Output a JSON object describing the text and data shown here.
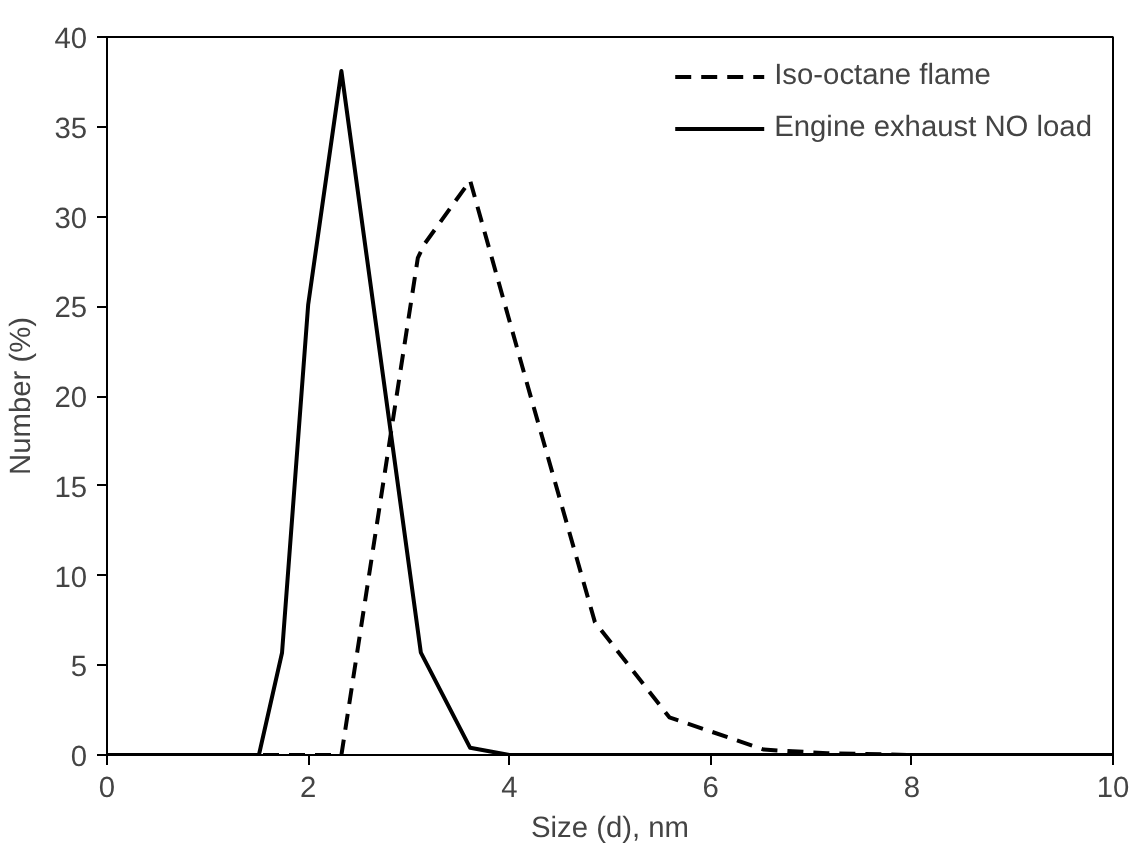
{
  "chart_data": {
    "type": "line",
    "xlabel": "Size (d), nm",
    "ylabel": "Number (%)",
    "xlim": [
      0,
      10
    ],
    "ylim": [
      0,
      40
    ],
    "xticks": [
      0,
      2,
      4,
      6,
      8,
      10
    ],
    "yticks": [
      0,
      5,
      10,
      15,
      20,
      25,
      30,
      35,
      40
    ],
    "grid": false,
    "legend": "top right",
    "marker": "none",
    "series": [
      {
        "name": "Iso-octane flame",
        "color": "#000000",
        "line_style": "dashed",
        "x": [
          0,
          1.5,
          2.33,
          3.09,
          3.16,
          3.61,
          4.2,
          4.85,
          5.59,
          6.53,
          7.16,
          8,
          10
        ],
        "values": [
          0,
          0,
          0,
          27.7,
          28.5,
          32.0,
          20.2,
          7.4,
          2.1,
          0.3,
          0.1,
          0,
          0
        ]
      },
      {
        "name": "Engine exhaust NO load",
        "color": "#000000",
        "line_style": "solid",
        "x": [
          0,
          1.51,
          1.74,
          2.0,
          2.33,
          3.12,
          3.61,
          4.0,
          6,
          10
        ],
        "values": [
          0,
          0,
          5.7,
          25.1,
          38.1,
          5.7,
          0.4,
          0,
          0,
          0
        ]
      }
    ]
  }
}
